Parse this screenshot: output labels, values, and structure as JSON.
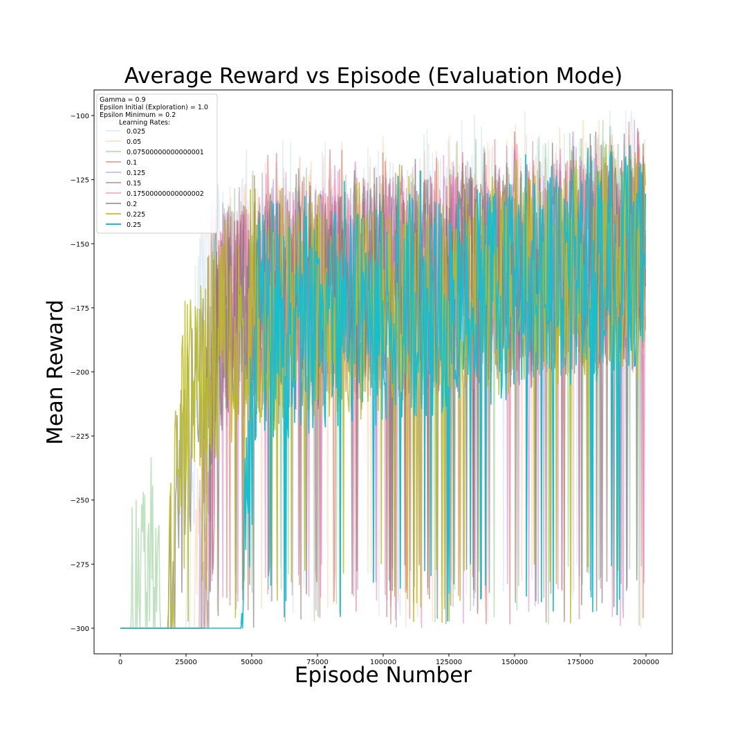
{
  "chart_data": {
    "type": "line",
    "title": "Average Reward vs Episode (Evaluation Mode)",
    "xlabel": "Episode Number",
    "ylabel": "Mean Reward",
    "xlim": [
      -10000,
      210000
    ],
    "ylim": [
      -310,
      -90
    ],
    "x_ticks": [
      0,
      25000,
      50000,
      75000,
      100000,
      125000,
      150000,
      175000,
      200000
    ],
    "y_ticks": [
      -100,
      -125,
      -150,
      -175,
      -200,
      -225,
      -250,
      -275,
      -300
    ],
    "grid": false,
    "legend": {
      "placement": "top-left",
      "info_lines": [
        "Gamma = 0.9",
        "Epsilon Initial (Exploration) = 1.0",
        "Epsilon Minimum = 0.2"
      ],
      "title": "Learning Rates:"
    },
    "series": [
      {
        "name": "0.025",
        "color": "#1f77b4",
        "opacity": 0.12,
        "profile": [
          [
            0,
            -300
          ],
          [
            25000,
            -300
          ],
          [
            30000,
            -170
          ],
          [
            50000,
            -165
          ],
          [
            100000,
            -160
          ],
          [
            150000,
            -152
          ],
          [
            200000,
            -145
          ]
        ]
      },
      {
        "name": "0.05",
        "color": "#ff7f0e",
        "opacity": 0.2,
        "profile": [
          [
            0,
            -300
          ],
          [
            28000,
            -300
          ],
          [
            33000,
            -175
          ],
          [
            50000,
            -168
          ],
          [
            100000,
            -162
          ],
          [
            150000,
            -156
          ],
          [
            200000,
            -148
          ]
        ]
      },
      {
        "name": "0.07500000000000001",
        "color": "#2ca02c",
        "opacity": 0.3,
        "profile": [
          [
            0,
            -300
          ],
          [
            4000,
            -300
          ],
          [
            5000,
            -285
          ],
          [
            14000,
            -283
          ],
          [
            16000,
            -300
          ],
          [
            30000,
            -300
          ],
          [
            35000,
            -180
          ],
          [
            50000,
            -172
          ],
          [
            100000,
            -168
          ],
          [
            150000,
            -160
          ],
          [
            200000,
            -150
          ]
        ]
      },
      {
        "name": "0.1",
        "color": "#d62728",
        "opacity": 0.4,
        "profile": [
          [
            0,
            -300
          ],
          [
            30000,
            -300
          ],
          [
            35000,
            -175
          ],
          [
            50000,
            -170
          ],
          [
            100000,
            -165
          ],
          [
            150000,
            -160
          ],
          [
            200000,
            -155
          ]
        ]
      },
      {
        "name": "0.125",
        "color": "#9467bd",
        "opacity": 0.4,
        "profile": [
          [
            0,
            -300
          ],
          [
            30000,
            -300
          ],
          [
            35000,
            -178
          ],
          [
            50000,
            -172
          ],
          [
            100000,
            -168
          ],
          [
            150000,
            -162
          ],
          [
            200000,
            -155
          ]
        ]
      },
      {
        "name": "0.15",
        "color": "#8c564b",
        "opacity": 0.5,
        "profile": [
          [
            0,
            -300
          ],
          [
            32000,
            -300
          ],
          [
            38000,
            -180
          ],
          [
            50000,
            -175
          ],
          [
            100000,
            -170
          ],
          [
            150000,
            -164
          ],
          [
            200000,
            -156
          ]
        ]
      },
      {
        "name": "0.17500000000000002",
        "color": "#e377c2",
        "opacity": 0.55,
        "profile": [
          [
            0,
            -300
          ],
          [
            32000,
            -300
          ],
          [
            38000,
            -180
          ],
          [
            50000,
            -176
          ],
          [
            100000,
            -171
          ],
          [
            150000,
            -165
          ],
          [
            200000,
            -158
          ]
        ]
      },
      {
        "name": "0.2",
        "color": "#7f7f7f",
        "opacity": 0.7,
        "profile": [
          [
            0,
            -300
          ],
          [
            18000,
            -300
          ],
          [
            20000,
            -270
          ],
          [
            30000,
            -200
          ],
          [
            50000,
            -180
          ],
          [
            100000,
            -172
          ],
          [
            150000,
            -166
          ],
          [
            200000,
            -158
          ]
        ]
      },
      {
        "name": "0.225",
        "color": "#bcbd22",
        "opacity": 0.85,
        "profile": [
          [
            0,
            -300
          ],
          [
            18000,
            -300
          ],
          [
            22000,
            -240
          ],
          [
            26000,
            -200
          ],
          [
            50000,
            -182
          ],
          [
            100000,
            -175
          ],
          [
            150000,
            -168
          ],
          [
            200000,
            -160
          ]
        ]
      },
      {
        "name": "0.25",
        "color": "#17becf",
        "opacity": 1.0,
        "profile": [
          [
            0,
            -300
          ],
          [
            46000,
            -300
          ],
          [
            52000,
            -185
          ],
          [
            100000,
            -178
          ],
          [
            150000,
            -170
          ],
          [
            200000,
            -160
          ]
        ]
      }
    ]
  }
}
